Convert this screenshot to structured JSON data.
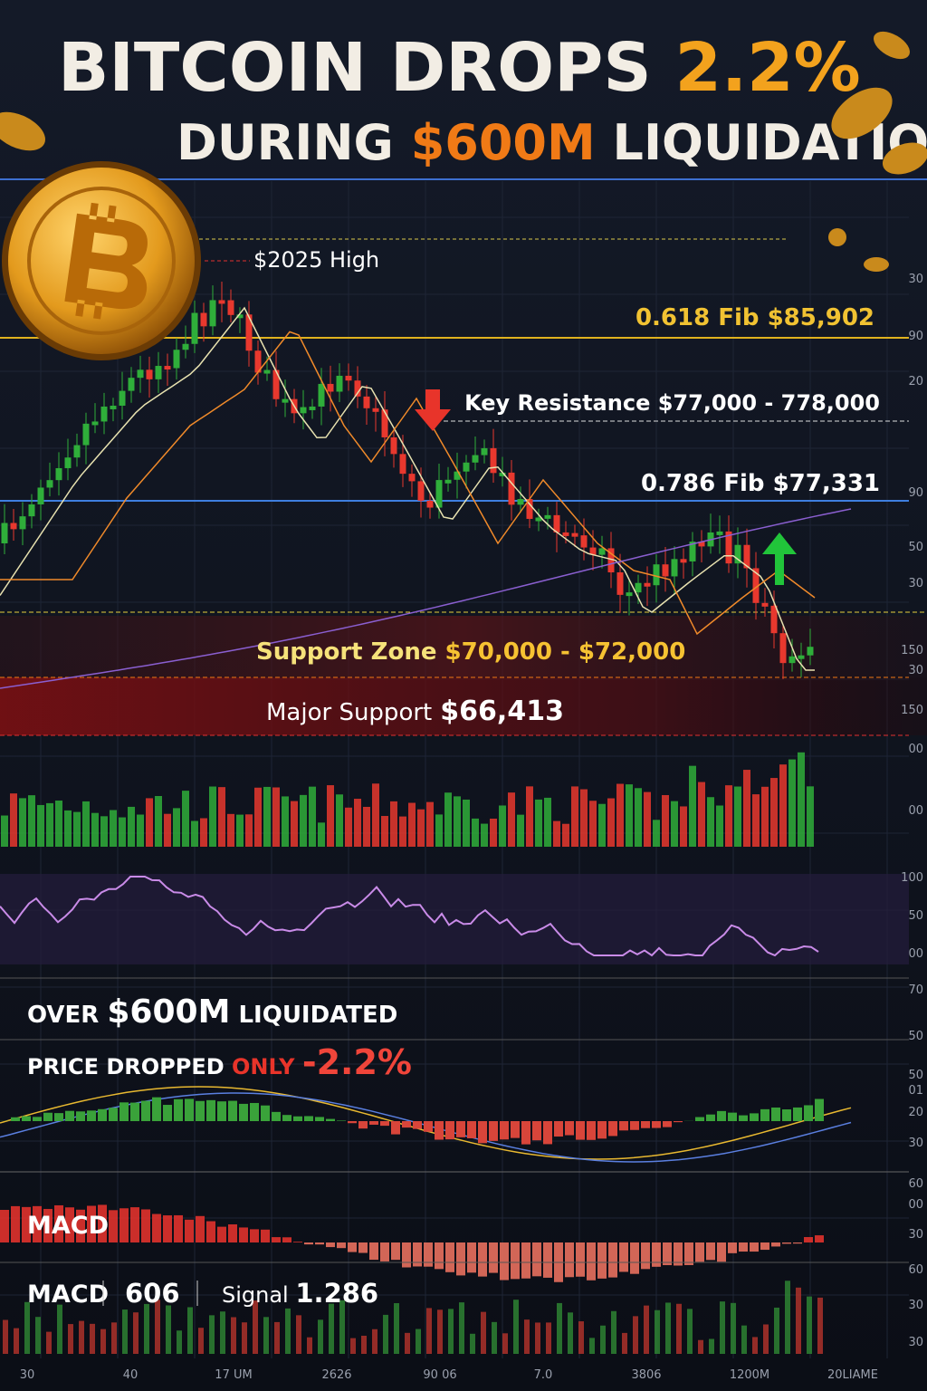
{
  "header": {
    "line1": {
      "text": "BITCOIN DROPS",
      "highlight": "2.2%"
    },
    "line2": {
      "prefix": "DURING",
      "highlight": "$600M",
      "suffix": "LIQUIDATION"
    }
  },
  "annotations": {
    "high": "$2025 High",
    "fib618": {
      "label": "0.618 Fib",
      "price": "$85,902"
    },
    "resistance": "Key Resistance $77,000 - 778,000",
    "fib786": {
      "label": "0.786 Fib",
      "price": "$77,331"
    },
    "support_zone": {
      "label": "Support Zone",
      "range": "$70,000 - $72,000"
    },
    "major_support": {
      "label": "Major Support",
      "price": "$66,413"
    }
  },
  "summary": {
    "line1": {
      "prefix": "OVER",
      "amount": "$600M",
      "suffix": "LIQUIDATED"
    },
    "line2": {
      "prefix": "PRICE DROPPED",
      "word": "ONLY",
      "change": "-2.2%"
    }
  },
  "macd": {
    "title": "MACD",
    "label": "MACD",
    "value": "606",
    "signal_label": "Signal",
    "signal_value": "1.286"
  },
  "right_axis": [
    "30",
    "90",
    "20",
    "90",
    "50",
    "30",
    "150",
    "30",
    "150",
    "00",
    "00",
    "100",
    "50",
    "00",
    "70",
    "50",
    "50",
    "01",
    "20",
    "30",
    "60",
    "00",
    "30",
    "60",
    "30",
    "30"
  ],
  "bottom_axis": [
    "30",
    "40",
    "17 UM",
    "2626",
    "90 06",
    "7.0",
    "3806",
    "1200M",
    "20LIAME"
  ]
}
